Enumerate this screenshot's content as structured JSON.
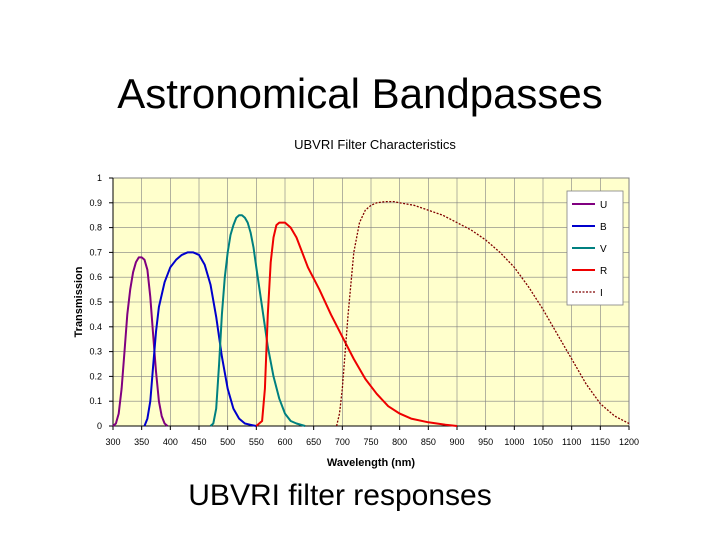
{
  "slide": {
    "title": "Astronomical Bandpasses",
    "caption": "UBVRI filter responses"
  },
  "chart_data": {
    "type": "line",
    "title": "UBVRI Filter Characteristics",
    "xlabel": "Wavelength (nm)",
    "ylabel": "Transmission",
    "xlim": [
      300,
      1200
    ],
    "ylim": [
      0,
      1
    ],
    "x_ticks": [
      "300",
      "350",
      "400",
      "450",
      "500",
      "550",
      "600",
      "650",
      "700",
      "750",
      "800",
      "850",
      "900",
      "950",
      "1000",
      "1050",
      "1100",
      "1150",
      "1200"
    ],
    "y_ticks": [
      "0",
      "0.1",
      "0.2",
      "0.3",
      "0.4",
      "0.5",
      "0.6",
      "0.7",
      "0.8",
      "0.9",
      "1"
    ],
    "grid": true,
    "plot_background": "#FFFFCC",
    "legend_position": "top-right",
    "series": [
      {
        "name": "U",
        "color": "#800080",
        "marker": "none",
        "points": [
          [
            300,
            0
          ],
          [
            305,
            0.01
          ],
          [
            310,
            0.05
          ],
          [
            315,
            0.15
          ],
          [
            320,
            0.3
          ],
          [
            325,
            0.45
          ],
          [
            330,
            0.55
          ],
          [
            335,
            0.62
          ],
          [
            340,
            0.66
          ],
          [
            345,
            0.68
          ],
          [
            350,
            0.68
          ],
          [
            355,
            0.67
          ],
          [
            360,
            0.63
          ],
          [
            365,
            0.52
          ],
          [
            370,
            0.37
          ],
          [
            375,
            0.22
          ],
          [
            380,
            0.1
          ],
          [
            385,
            0.04
          ],
          [
            390,
            0.01
          ],
          [
            395,
            0
          ]
        ]
      },
      {
        "name": "B",
        "color": "#0000CC",
        "marker": "none",
        "points": [
          [
            355,
            0
          ],
          [
            360,
            0.03
          ],
          [
            365,
            0.1
          ],
          [
            370,
            0.24
          ],
          [
            375,
            0.38
          ],
          [
            380,
            0.48
          ],
          [
            390,
            0.58
          ],
          [
            400,
            0.64
          ],
          [
            410,
            0.67
          ],
          [
            420,
            0.69
          ],
          [
            430,
            0.7
          ],
          [
            440,
            0.7
          ],
          [
            450,
            0.69
          ],
          [
            460,
            0.65
          ],
          [
            470,
            0.57
          ],
          [
            480,
            0.44
          ],
          [
            490,
            0.28
          ],
          [
            500,
            0.15
          ],
          [
            510,
            0.07
          ],
          [
            520,
            0.03
          ],
          [
            530,
            0.01
          ],
          [
            540,
            0.005
          ],
          [
            550,
            0
          ]
        ]
      },
      {
        "name": "V",
        "color": "#008080",
        "marker": "none",
        "points": [
          [
            470,
            0
          ],
          [
            475,
            0.01
          ],
          [
            480,
            0.07
          ],
          [
            485,
            0.25
          ],
          [
            490,
            0.45
          ],
          [
            495,
            0.6
          ],
          [
            500,
            0.7
          ],
          [
            505,
            0.77
          ],
          [
            510,
            0.81
          ],
          [
            515,
            0.84
          ],
          [
            520,
            0.85
          ],
          [
            525,
            0.85
          ],
          [
            530,
            0.84
          ],
          [
            535,
            0.82
          ],
          [
            540,
            0.78
          ],
          [
            545,
            0.72
          ],
          [
            550,
            0.64
          ],
          [
            560,
            0.48
          ],
          [
            570,
            0.32
          ],
          [
            580,
            0.2
          ],
          [
            590,
            0.11
          ],
          [
            600,
            0.05
          ],
          [
            610,
            0.02
          ],
          [
            620,
            0.01
          ],
          [
            635,
            0
          ]
        ]
      },
      {
        "name": "R",
        "color": "#EE0000",
        "marker": "none",
        "points": [
          [
            550,
            0
          ],
          [
            560,
            0.02
          ],
          [
            565,
            0.15
          ],
          [
            570,
            0.45
          ],
          [
            575,
            0.66
          ],
          [
            580,
            0.76
          ],
          [
            585,
            0.81
          ],
          [
            590,
            0.82
          ],
          [
            600,
            0.82
          ],
          [
            610,
            0.8
          ],
          [
            620,
            0.76
          ],
          [
            630,
            0.7
          ],
          [
            640,
            0.64
          ],
          [
            660,
            0.55
          ],
          [
            680,
            0.45
          ],
          [
            700,
            0.36
          ],
          [
            720,
            0.27
          ],
          [
            740,
            0.19
          ],
          [
            760,
            0.13
          ],
          [
            780,
            0.08
          ],
          [
            800,
            0.05
          ],
          [
            820,
            0.03
          ],
          [
            850,
            0.015
          ],
          [
            880,
            0.005
          ],
          [
            900,
            0
          ]
        ]
      },
      {
        "name": "I",
        "color": "#800000",
        "marker": "dot",
        "points": [
          [
            690,
            0
          ],
          [
            695,
            0.05
          ],
          [
            700,
            0.15
          ],
          [
            705,
            0.3
          ],
          [
            710,
            0.45
          ],
          [
            720,
            0.7
          ],
          [
            730,
            0.82
          ],
          [
            740,
            0.87
          ],
          [
            750,
            0.89
          ],
          [
            760,
            0.9
          ],
          [
            775,
            0.905
          ],
          [
            790,
            0.905
          ],
          [
            800,
            0.9
          ],
          [
            825,
            0.89
          ],
          [
            850,
            0.87
          ],
          [
            875,
            0.85
          ],
          [
            900,
            0.82
          ],
          [
            925,
            0.79
          ],
          [
            950,
            0.75
          ],
          [
            975,
            0.7
          ],
          [
            1000,
            0.64
          ],
          [
            1025,
            0.56
          ],
          [
            1050,
            0.47
          ],
          [
            1075,
            0.37
          ],
          [
            1100,
            0.27
          ],
          [
            1125,
            0.17
          ],
          [
            1150,
            0.09
          ],
          [
            1175,
            0.04
          ],
          [
            1200,
            0.01
          ]
        ]
      }
    ]
  }
}
